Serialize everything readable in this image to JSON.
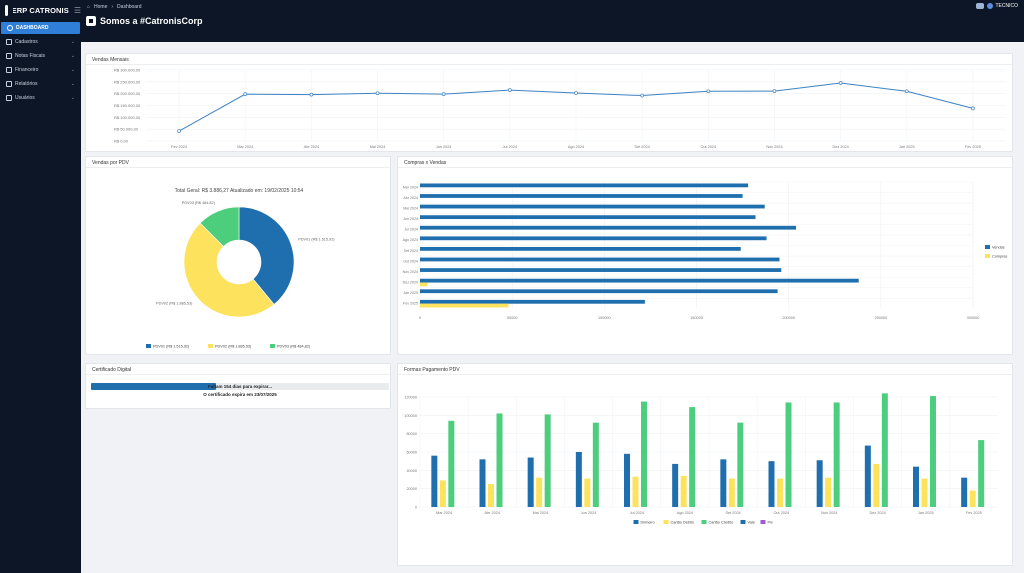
{
  "app": {
    "name": "ERP CATRONIS"
  },
  "sidebar": {
    "items": [
      {
        "label": "DASHBOARD",
        "icon": "dashboard-icon",
        "active": true
      },
      {
        "label": "Cadastros",
        "icon": "folder-icon"
      },
      {
        "label": "Notas Fiscais",
        "icon": "file-icon"
      },
      {
        "label": "Financeiro",
        "icon": "money-icon"
      },
      {
        "label": "Relatórios",
        "icon": "report-icon"
      },
      {
        "label": "Usuários",
        "icon": "users-icon"
      }
    ]
  },
  "header": {
    "breadcrumb": {
      "home": "Home",
      "separator": "›",
      "current": "Dashboard"
    },
    "title": "Somos a #CatronisCorp",
    "user": "TECNICO"
  },
  "colors": {
    "sidebar_bg": "#0c1626",
    "active": "#2f7fd6",
    "blue": "#1f6fae",
    "yellow": "#fde25e",
    "green": "#4cce7c",
    "purple": "#a25bd6"
  },
  "cards": {
    "vendas_mensais": "Vendas Mensais",
    "vendas_pdv": "Vendas por PDV",
    "compras_vendas": "Compras x Vendas",
    "certificado": "Certificado Digital",
    "formas_pagamento": "Formas Pagamento PDV"
  },
  "certificado": {
    "progress": 0.42,
    "text": "Faltam 154 dias para expirar...",
    "expiry": "O certificado expira em 23/07/2025"
  },
  "chart_data": [
    {
      "type": "line",
      "title": "",
      "x": [
        "Fev 2024",
        "Mar 2024",
        "Abr 2024",
        "Mai 2024",
        "Jun 2024",
        "Jul 2024",
        "Ago 2024",
        "Set 2024",
        "Out 2024",
        "Nov 2024",
        "Dez 2024",
        "Jan 2025",
        "Fev 2025"
      ],
      "y_ticks": [
        "R$ 0,00",
        "R$ 50.000,00",
        "R$ 100.000,00",
        "R$ 150.000,00",
        "R$ 200.000,00",
        "R$ 250.000,00",
        "R$ 300.000,00"
      ],
      "ylim": [
        0,
        300000
      ],
      "series": [
        {
          "values": [
            42000,
            198000,
            196000,
            202000,
            198000,
            215000,
            203000,
            192000,
            210000,
            211000,
            245000,
            210000,
            138000
          ]
        }
      ],
      "grid": true
    },
    {
      "type": "pie",
      "title": "Total Geral: R$ 3.886,27 Atualizado em: 19/02/2025 10:54",
      "slices": [
        {
          "name": "PDV01 (R$ 1.515,92)",
          "value": 1515.92,
          "color": "#1f6fae"
        },
        {
          "name": "PDV02 (R$ 1.885,53)",
          "value": 1885.53,
          "color": "#fde25e"
        },
        {
          "name": "PDV03 (R$ 484,82)",
          "value": 484.82,
          "color": "#4cce7c"
        }
      ],
      "legend": "bottom"
    },
    {
      "type": "bar",
      "orientation": "horizontal",
      "categories": [
        "Mar 2024",
        "Abr 2024",
        "Mai 2024",
        "Jun 2024",
        "Jul 2024",
        "Ago 2024",
        "Set 2024",
        "Out 2024",
        "Nov 2024",
        "Dez 2024",
        "Jan 2025",
        "Fev 2025"
      ],
      "x_ticks": [
        "0",
        "50000",
        "100000",
        "150000",
        "200000",
        "250000",
        "300000"
      ],
      "xlim": [
        0,
        300000
      ],
      "series": [
        {
          "name": "Vendas",
          "color": "#1f6fae",
          "values": [
            178000,
            175000,
            187000,
            182000,
            204000,
            188000,
            174000,
            195000,
            196000,
            238000,
            194000,
            122000
          ]
        },
        {
          "name": "Compras",
          "color": "#fde25e",
          "values": [
            0,
            0,
            0,
            0,
            0,
            0,
            0,
            0,
            0,
            4000,
            0,
            48000
          ]
        }
      ],
      "legend": "right"
    },
    {
      "type": "bar",
      "categories": [
        "Mar 2024",
        "Abr 2024",
        "Mai 2024",
        "Jun 2024",
        "Jul 2024",
        "Ago 2024",
        "Set 2024",
        "Out 2024",
        "Nov 2024",
        "Dez 2024",
        "Jan 2025",
        "Fev 2025"
      ],
      "y_ticks": [
        "0",
        "20000",
        "40000",
        "60000",
        "80000",
        "100000",
        "120000"
      ],
      "ylim": [
        0,
        120000
      ],
      "series": [
        {
          "name": "Dinheiro",
          "color": "#1f6fae",
          "values": [
            56000,
            52000,
            54000,
            60000,
            58000,
            47000,
            52000,
            50000,
            51000,
            67000,
            44000,
            32000
          ]
        },
        {
          "name": "Cartão Débito",
          "color": "#fde25e",
          "values": [
            29000,
            25000,
            32000,
            31000,
            33000,
            34000,
            31000,
            31000,
            32000,
            47000,
            31000,
            18000
          ]
        },
        {
          "name": "Cartão Crédito",
          "color": "#4cce7c",
          "values": [
            94000,
            102000,
            101000,
            92000,
            115000,
            109000,
            92000,
            114000,
            114000,
            124000,
            121000,
            73000
          ]
        },
        {
          "name": "Vale",
          "color": "#1f6fae",
          "values": [
            0,
            0,
            0,
            0,
            0,
            0,
            0,
            0,
            0,
            0,
            0,
            0
          ]
        },
        {
          "name": "Pix",
          "color": "#a25bd6",
          "values": [
            0,
            0,
            0,
            0,
            0,
            0,
            0,
            0,
            0,
            0,
            0,
            0
          ]
        }
      ],
      "legend": "bottom"
    }
  ]
}
